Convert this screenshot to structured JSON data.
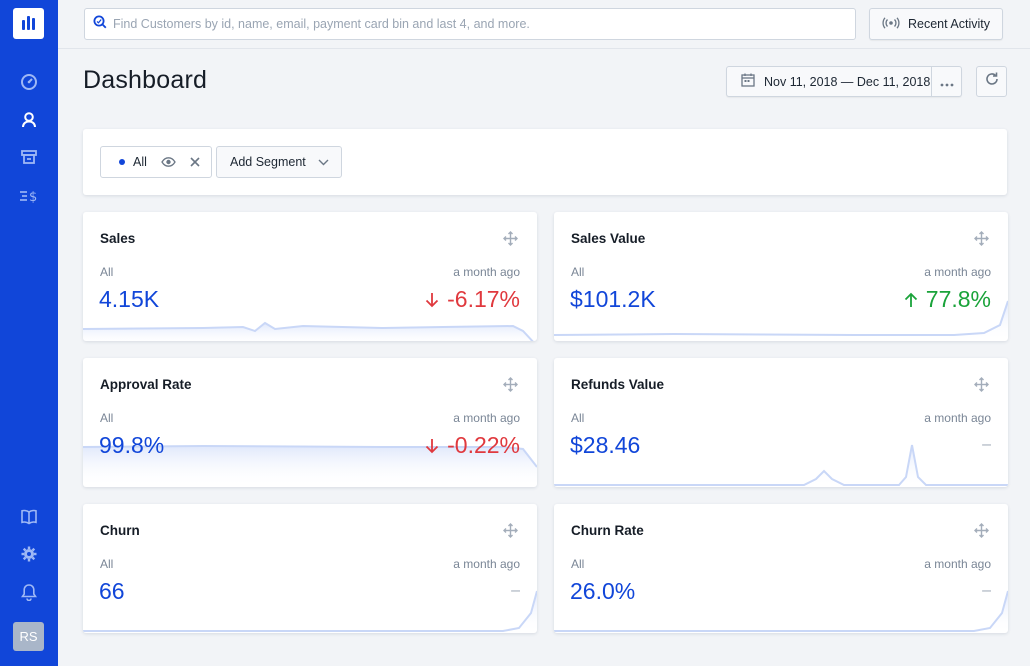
{
  "colors": {
    "brand": "#1146d9",
    "up": "#1aa33a",
    "down": "#e0393e"
  },
  "sidebar": {
    "top_icons": [
      "gauge-icon",
      "user-icon",
      "store-icon",
      "payments-icon"
    ],
    "bottom_icons": [
      "book-icon",
      "gear-icon",
      "bell-icon"
    ],
    "avatar": "RS"
  },
  "search": {
    "placeholder": "Find Customers by id, name, email, payment card bin and last 4, and more."
  },
  "recent_activity": {
    "label": "Recent Activity",
    "icon": "broadcast-icon"
  },
  "page": {
    "title": "Dashboard"
  },
  "date_range": {
    "label": "Nov 11, 2018 — Dec 11, 2018"
  },
  "segments": {
    "active_label": "All",
    "add_label": "Add Segment"
  },
  "cards": [
    {
      "title": "Sales",
      "segment": "All",
      "period": "a month ago",
      "value": "4.15K",
      "change": "-6.17%",
      "trend": "down"
    },
    {
      "title": "Sales Value",
      "segment": "All",
      "period": "a month ago",
      "value": "$101.2K",
      "change": "77.8%",
      "trend": "up"
    },
    {
      "title": "Approval Rate",
      "segment": "All",
      "period": "a month ago",
      "value": "99.8%",
      "change": "-0.22%",
      "trend": "down"
    },
    {
      "title": "Refunds Value",
      "segment": "All",
      "period": "a month ago",
      "value": "$28.46",
      "change": "–",
      "trend": "neutral"
    },
    {
      "title": "Churn",
      "segment": "All",
      "period": "a month ago",
      "value": "66",
      "change": "–",
      "trend": "neutral"
    },
    {
      "title": "Churn Rate",
      "segment": "All",
      "period": "a month ago",
      "value": "26.0%",
      "change": "–",
      "trend": "neutral"
    }
  ]
}
